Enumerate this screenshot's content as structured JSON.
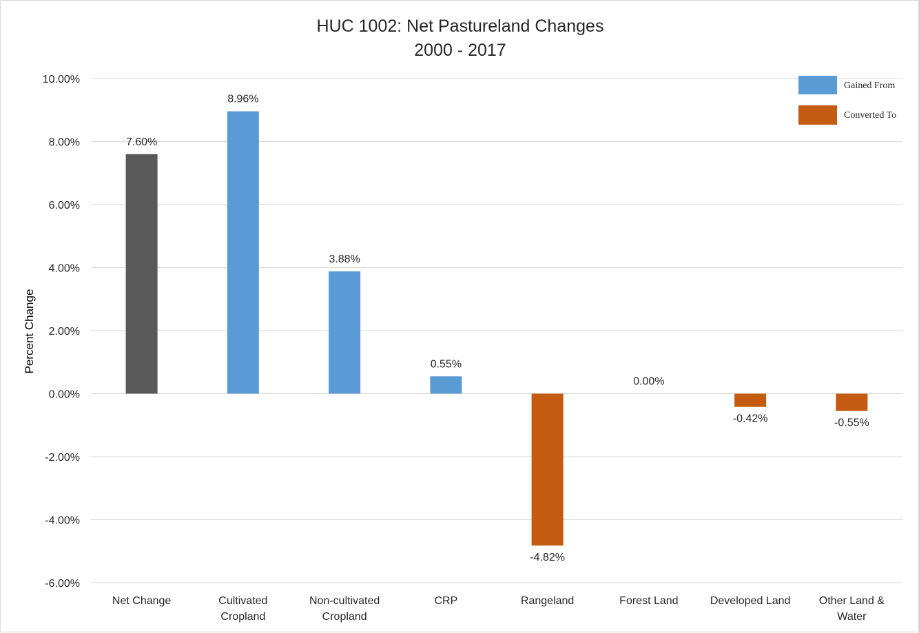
{
  "chart_data": {
    "type": "bar",
    "title": "HUC 1002: Net Pastureland Changes",
    "subtitle": "2000 - 2017",
    "xlabel": "",
    "ylabel": "Percent Change",
    "ylim": [
      -6,
      10
    ],
    "ytick_step": 2,
    "ytick_labels": [
      "-6.00%",
      "-4.00%",
      "-2.00%",
      "0.00%",
      "2.00%",
      "4.00%",
      "6.00%",
      "8.00%",
      "10.00%"
    ],
    "grid": true,
    "legend_position": "top-right",
    "legend": [
      {
        "label": "Gained From",
        "color": "#5b9bd5"
      },
      {
        "label": "Converted To",
        "color": "#c55a11"
      }
    ],
    "categories": [
      [
        "Net Change"
      ],
      [
        "Cultivated",
        "Cropland"
      ],
      [
        "Non-cultivated",
        "Cropland"
      ],
      [
        "CRP"
      ],
      [
        "Rangeland"
      ],
      [
        "Forest Land"
      ],
      [
        "Developed Land"
      ],
      [
        "Other Land &",
        "Water"
      ]
    ],
    "values": [
      7.6,
      8.96,
      3.88,
      0.55,
      -4.82,
      0.0,
      -0.42,
      -0.55
    ],
    "data_labels": [
      "7.60%",
      "8.96%",
      "3.88%",
      "0.55%",
      "-4.82%",
      "0.00%",
      "-0.42%",
      "-0.55%"
    ],
    "bar_colors": [
      "#595959",
      "#5b9bd5",
      "#5b9bd5",
      "#5b9bd5",
      "#c55a11",
      "#c55a11",
      "#c55a11",
      "#c55a11"
    ]
  }
}
